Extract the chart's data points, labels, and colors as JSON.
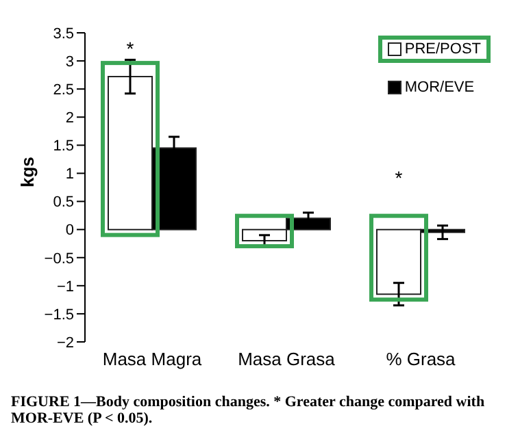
{
  "chart_data": {
    "type": "bar",
    "ylabel": "kgs",
    "categories": [
      "Masa Magra",
      "Masa Grasa",
      "% Grasa"
    ],
    "series": [
      {
        "name": "PRE/POST",
        "color": "#ffffff",
        "values": [
          2.72,
          -0.2,
          -1.15
        ],
        "errors": [
          0.3,
          0.1,
          0.2
        ]
      },
      {
        "name": "MOR/EVE",
        "color": "#000000",
        "values": [
          1.45,
          0.2,
          -0.05
        ],
        "errors": [
          0.2,
          0.1,
          0.12
        ]
      }
    ],
    "ylim": [
      -2,
      3.5
    ],
    "yticks": [
      -2,
      -1.5,
      -1,
      -0.5,
      0,
      0.5,
      1,
      1.5,
      2,
      2.5,
      3,
      3.5
    ],
    "grid": false,
    "legend": "top right",
    "annotations": [
      "*",
      "*",
      "FIGURE 1—Body composition changes. * Greater change compared with MOR-EVE (P < 0.05)."
    ]
  }
}
